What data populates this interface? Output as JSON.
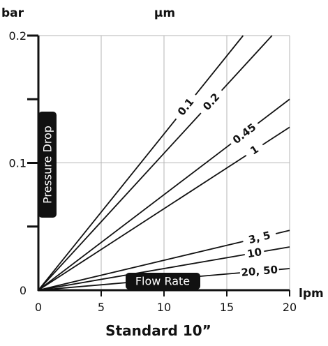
{
  "chart_data": {
    "type": "line",
    "title": "Standard 10”",
    "y_unit": "bar",
    "x_unit": "lpm",
    "top_label": "µm",
    "y_axis_label": "Pressure Drop",
    "x_axis_label": "Flow Rate",
    "xlim": [
      0,
      20
    ],
    "ylim": [
      0,
      0.2
    ],
    "x_ticks": [
      "0",
      "5",
      "10",
      "15",
      "20"
    ],
    "y_ticks": [
      "0",
      "0.1",
      "0.2"
    ],
    "grid": true,
    "series": [
      {
        "name": "0.1",
        "x": [
          0,
          16.3
        ],
        "y": [
          0,
          0.2
        ]
      },
      {
        "name": "0.2",
        "x": [
          0,
          18.6
        ],
        "y": [
          0,
          0.2
        ]
      },
      {
        "name": "0.45",
        "x": [
          0,
          20
        ],
        "y": [
          0,
          0.15
        ]
      },
      {
        "name": "1",
        "x": [
          0,
          20
        ],
        "y": [
          0,
          0.128
        ]
      },
      {
        "name": "3, 5",
        "x": [
          0,
          20
        ],
        "y": [
          0,
          0.047
        ]
      },
      {
        "name": "10",
        "x": [
          0,
          20
        ],
        "y": [
          0,
          0.034
        ]
      },
      {
        "name": "20, 50",
        "x": [
          0,
          20
        ],
        "y": [
          0,
          0.017
        ]
      }
    ]
  }
}
